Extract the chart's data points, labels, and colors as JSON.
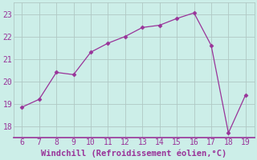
{
  "x": [
    6,
    7,
    8,
    9,
    10,
    11,
    12,
    13,
    14,
    15,
    16,
    17,
    18,
    19
  ],
  "y": [
    18.85,
    19.2,
    20.4,
    20.3,
    21.3,
    21.7,
    22.0,
    22.4,
    22.5,
    22.8,
    23.05,
    21.6,
    17.7,
    19.4
  ],
  "line_color": "#993399",
  "marker": "D",
  "marker_size": 2.5,
  "bg_color": "#cceee8",
  "grid_color": "#b0c8c4",
  "xlabel": "Windchill (Refroidissement éolien,°C)",
  "xlabel_color": "#993399",
  "tick_color": "#993399",
  "label_color": "#993399",
  "xlim": [
    5.5,
    19.5
  ],
  "ylim": [
    17.5,
    23.5
  ],
  "xticks": [
    6,
    7,
    8,
    9,
    10,
    11,
    12,
    13,
    14,
    15,
    16,
    17,
    18,
    19
  ],
  "yticks": [
    18,
    19,
    20,
    21,
    22,
    23
  ],
  "tick_fontsize": 7,
  "xlabel_fontsize": 7.5
}
